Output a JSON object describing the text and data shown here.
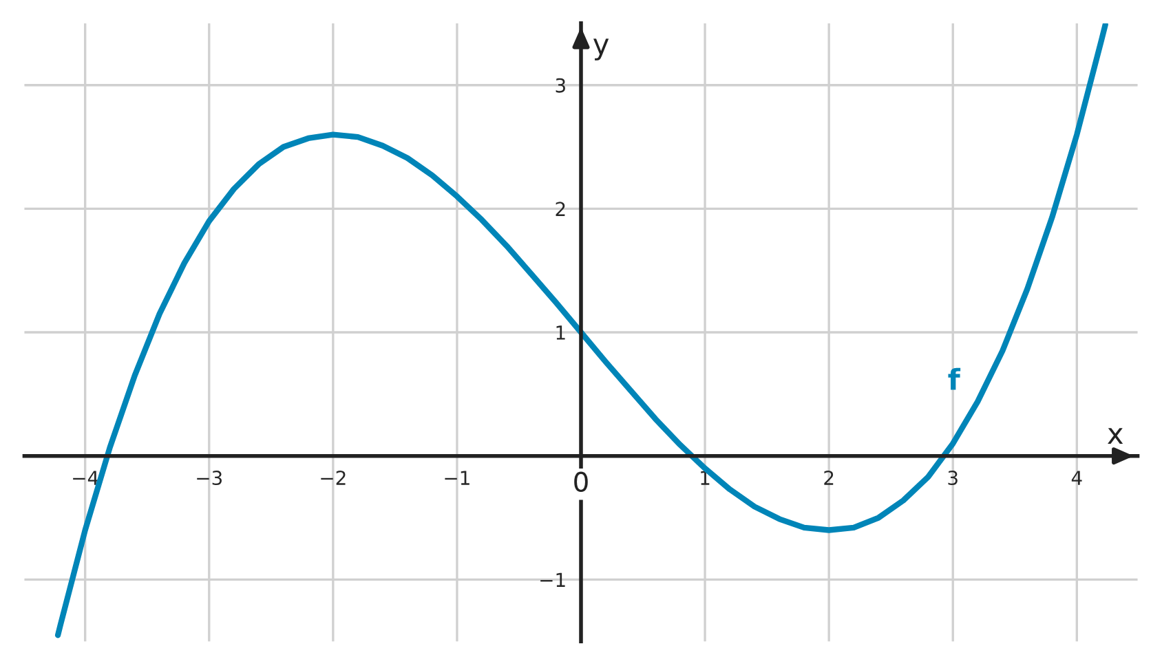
{
  "chart_data": {
    "type": "line",
    "x": [
      -4.22,
      -4.2,
      -4.0,
      -3.8,
      -3.6,
      -3.4,
      -3.2,
      -3.0,
      -2.8,
      -2.6,
      -2.4,
      -2.2,
      -2.0,
      -1.8,
      -1.6,
      -1.4,
      -1.2,
      -1.0,
      -0.8,
      -0.6,
      -0.4,
      -0.2,
      0,
      0.2,
      0.4,
      0.6,
      0.8,
      1.0,
      1.2,
      1.4,
      1.6,
      1.8,
      2.0,
      2.2,
      2.4,
      2.6,
      2.8,
      3.0,
      3.2,
      3.4,
      3.6,
      3.8,
      4.0,
      4.2,
      4.23
    ],
    "series": [
      {
        "color": "#0085b8",
        "values": [
          -1.45,
          -1.37,
          -0.6,
          0.07,
          0.65,
          1.15,
          1.56,
          1.9,
          2.16,
          2.36,
          2.5,
          2.57,
          2.6,
          2.58,
          2.51,
          2.41,
          2.27,
          2.1,
          1.91,
          1.7,
          1.47,
          1.24,
          1,
          0.76,
          0.53,
          0.3,
          0.09,
          -0.1,
          -0.27,
          -0.41,
          -0.51,
          -0.58,
          -0.6,
          -0.58,
          -0.5,
          -0.36,
          -0.17,
          0.1,
          0.44,
          0.85,
          1.35,
          1.93,
          2.6,
          3.37,
          3.49
        ]
      }
    ],
    "xlabel": "x",
    "ylabel": "y",
    "annotations": [
      "f"
    ],
    "xlim": [
      -4.49,
      4.49
    ],
    "ylim": [
      -1.5,
      3.5
    ],
    "xticks": [
      {
        "value": -4,
        "label": "−4"
      },
      {
        "value": -3,
        "label": "−3"
      },
      {
        "value": -2,
        "label": "−2"
      },
      {
        "value": -1,
        "label": "−1"
      },
      0,
      1,
      2,
      3,
      4
    ],
    "yticks": [
      {
        "value": -1,
        "label": "−1"
      },
      1,
      2,
      3
    ],
    "grid": true
  }
}
